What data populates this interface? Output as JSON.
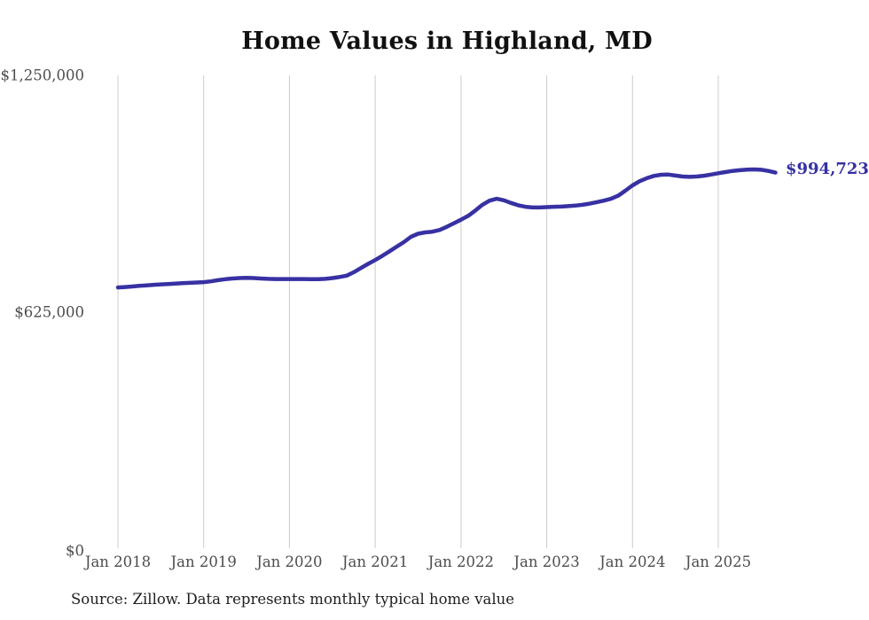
{
  "chart": {
    "title": "Home Values in Highland, MD",
    "end_label": "$994,723",
    "source_note": "Source: Zillow. Data represents monthly typical home value",
    "colors": {
      "line": "#3731a3",
      "grid": "#cccccc",
      "axis_text": "#4d4d4d",
      "title_text": "#111111",
      "end_label_text": "#3731a3",
      "source_text": "#1f1f1f",
      "background": "#ffffff"
    }
  },
  "chart_data": {
    "type": "line",
    "title": "Home Values in Highland, MD",
    "ylabel": "",
    "xlabel": "",
    "ylim": [
      0,
      1250000
    ],
    "grid": "vertical-only",
    "legend": "none",
    "series_name": "Typical home value (monthly, Zillow)",
    "last_value": 994723,
    "last_point_label": "$994,723",
    "y_ticks": [
      {
        "value": 0,
        "label": "$0"
      },
      {
        "value": 625000,
        "label": "$625,000"
      },
      {
        "value": 1250000,
        "label": "$1,250,000"
      }
    ],
    "x_ticks": [
      {
        "month_index": 0,
        "label": "Jan 2018"
      },
      {
        "month_index": 12,
        "label": "Jan 2019"
      },
      {
        "month_index": 24,
        "label": "Jan 2020"
      },
      {
        "month_index": 36,
        "label": "Jan 2021"
      },
      {
        "month_index": 48,
        "label": "Jan 2022"
      },
      {
        "month_index": 60,
        "label": "Jan 2023"
      },
      {
        "month_index": 72,
        "label": "Jan 2024"
      },
      {
        "month_index": 84,
        "label": "Jan 2025"
      }
    ],
    "x": [
      "2018-01",
      "2018-02",
      "2018-03",
      "2018-04",
      "2018-05",
      "2018-06",
      "2018-07",
      "2018-08",
      "2018-09",
      "2018-10",
      "2018-11",
      "2018-12",
      "2019-01",
      "2019-02",
      "2019-03",
      "2019-04",
      "2019-05",
      "2019-06",
      "2019-07",
      "2019-08",
      "2019-09",
      "2019-10",
      "2019-11",
      "2019-12",
      "2020-01",
      "2020-02",
      "2020-03",
      "2020-04",
      "2020-05",
      "2020-06",
      "2020-07",
      "2020-08",
      "2020-09",
      "2020-10",
      "2020-11",
      "2020-12",
      "2021-01",
      "2021-02",
      "2021-03",
      "2021-04",
      "2021-05",
      "2021-06",
      "2021-07",
      "2021-08",
      "2021-09",
      "2021-10",
      "2021-11",
      "2021-12",
      "2022-01",
      "2022-02",
      "2022-03",
      "2022-04",
      "2022-05",
      "2022-06",
      "2022-07",
      "2022-08",
      "2022-09",
      "2022-10",
      "2022-11",
      "2022-12",
      "2023-01",
      "2023-02",
      "2023-03",
      "2023-04",
      "2023-05",
      "2023-06",
      "2023-07",
      "2023-08",
      "2023-09",
      "2023-10",
      "2023-11",
      "2023-12",
      "2024-01",
      "2024-02",
      "2024-03",
      "2024-04",
      "2024-05",
      "2024-06",
      "2024-07",
      "2024-08",
      "2024-09",
      "2024-10",
      "2024-11",
      "2024-12",
      "2025-01",
      "2025-02",
      "2025-03",
      "2025-04",
      "2025-05",
      "2025-06",
      "2025-07",
      "2025-08",
      "2025-09"
    ],
    "values": [
      693000,
      694000,
      695500,
      697000,
      698500,
      700000,
      701000,
      702000,
      703000,
      704000,
      705000,
      706000,
      707000,
      709000,
      712000,
      714500,
      716500,
      717500,
      718000,
      717500,
      716500,
      715500,
      715000,
      715000,
      715000,
      715000,
      715000,
      714500,
      714500,
      715500,
      717500,
      720500,
      724000,
      733000,
      744000,
      755000,
      765000,
      776000,
      788000,
      800000,
      812000,
      826000,
      834000,
      837500,
      839500,
      844000,
      852000,
      861500,
      871000,
      881000,
      895000,
      910000,
      921000,
      926000,
      922000,
      915000,
      909000,
      905000,
      903000,
      903000,
      904000,
      905000,
      905500,
      906500,
      908000,
      910000,
      913000,
      917000,
      921000,
      926000,
      934000,
      947000,
      961000,
      972000,
      980000,
      986000,
      989000,
      989500,
      987000,
      984500,
      983500,
      984500,
      986500,
      989500,
      993000,
      996000,
      999000,
      1001000,
      1002500,
      1003000,
      1002000,
      999000,
      994723
    ]
  }
}
